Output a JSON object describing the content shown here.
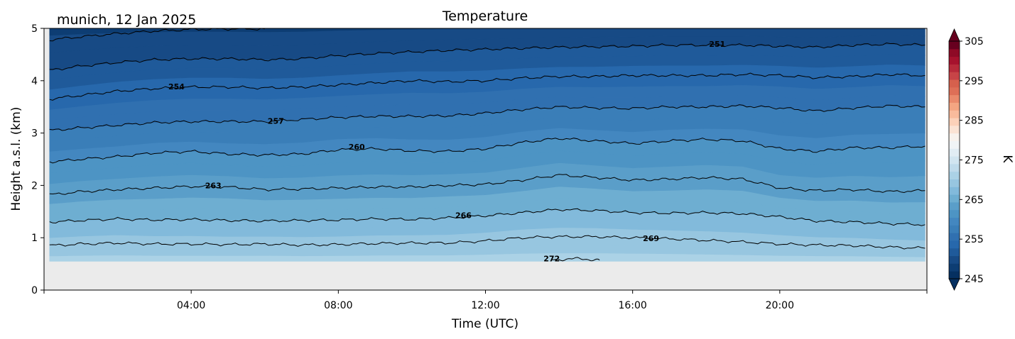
{
  "chart_data": {
    "type": "heatmap",
    "title": "Temperature",
    "location_label": "munich, 12 Jan 2025",
    "xlabel": "Time (UTC)",
    "ylabel": "Height a.s.l. (km)",
    "x_unit": "hours UTC",
    "xlim": [
      0,
      24
    ],
    "ylim": [
      0,
      5
    ],
    "x_ticks": [
      {
        "value": 4,
        "label": "04:00"
      },
      {
        "value": 8,
        "label": "08:00"
      },
      {
        "value": 12,
        "label": "12:00"
      },
      {
        "value": 16,
        "label": "16:00"
      },
      {
        "value": 20,
        "label": "20:00"
      }
    ],
    "y_ticks": [
      {
        "value": 0,
        "label": "0"
      },
      {
        "value": 1,
        "label": "1"
      },
      {
        "value": 2,
        "label": "2"
      },
      {
        "value": 3,
        "label": "3"
      },
      {
        "value": 4,
        "label": "4"
      },
      {
        "value": 5,
        "label": "5"
      }
    ],
    "data_time_range": [
      0.15,
      23.95
    ],
    "data_bottom_km": 0.55,
    "colorbar": {
      "label": "K",
      "range": [
        245,
        305
      ],
      "ticks": [
        {
          "value": 245,
          "label": "245"
        },
        {
          "value": 255,
          "label": "255"
        },
        {
          "value": 265,
          "label": "265"
        },
        {
          "value": 275,
          "label": "275"
        },
        {
          "value": 285,
          "label": "285"
        },
        {
          "value": 295,
          "label": "295"
        },
        {
          "value": 305,
          "label": "305"
        }
      ],
      "colors": [
        "#053061",
        "#0d3d73",
        "#174a85",
        "#1f5a9a",
        "#2768ac",
        "#3070b0",
        "#3a7eb8",
        "#4387c0",
        "#4d94c4",
        "#5a9ec9",
        "#6eaed1",
        "#82badb",
        "#97c6e0",
        "#abd2e6",
        "#bfdbeb",
        "#d1e5f0",
        "#e1edf4",
        "#f0f4f6",
        "#f8f2ed",
        "#fbe3d4",
        "#fcd1b9",
        "#f9bb9c",
        "#f4a582",
        "#ea8a6c",
        "#de6f57",
        "#d6604d",
        "#c74447",
        "#b72a3a",
        "#a6122d",
        "#8e0a26",
        "#67001f"
      ],
      "extend": "both",
      "under_color": "#053061",
      "over_color": "#67001f"
    },
    "surface_fill_color": "#ebebeb",
    "contours": [
      {
        "level": 269,
        "points": [
          [
            0.15,
            0.85
          ],
          [
            1,
            0.88
          ],
          [
            2,
            0.9
          ],
          [
            3,
            0.88
          ],
          [
            4,
            0.88
          ],
          [
            5,
            0.87
          ],
          [
            6,
            0.88
          ],
          [
            7,
            0.86
          ],
          [
            8,
            0.87
          ],
          [
            9,
            0.89
          ],
          [
            10,
            0.9
          ],
          [
            11,
            0.9
          ],
          [
            12,
            0.94
          ],
          [
            13,
            1.0
          ],
          [
            14,
            1.02
          ],
          [
            15,
            1.02
          ],
          [
            16,
            1.0
          ],
          [
            17,
            0.98
          ],
          [
            18,
            0.95
          ],
          [
            19,
            0.92
          ],
          [
            20,
            0.88
          ],
          [
            21,
            0.86
          ],
          [
            22,
            0.85
          ],
          [
            23,
            0.82
          ],
          [
            23.95,
            0.8
          ]
        ],
        "label": {
          "x": 16.5,
          "y": 0.99,
          "text": "269"
        }
      },
      {
        "level": 266,
        "points": [
          [
            0.15,
            1.3
          ],
          [
            1,
            1.33
          ],
          [
            2,
            1.36
          ],
          [
            3,
            1.34
          ],
          [
            4,
            1.35
          ],
          [
            5,
            1.33
          ],
          [
            6,
            1.32
          ],
          [
            7,
            1.33
          ],
          [
            8,
            1.34
          ],
          [
            9,
            1.36
          ],
          [
            10,
            1.35
          ],
          [
            11,
            1.38
          ],
          [
            12,
            1.42
          ],
          [
            13,
            1.48
          ],
          [
            14,
            1.54
          ],
          [
            15,
            1.52
          ],
          [
            16,
            1.48
          ],
          [
            17,
            1.47
          ],
          [
            18,
            1.48
          ],
          [
            19,
            1.46
          ],
          [
            20,
            1.4
          ],
          [
            21,
            1.32
          ],
          [
            22,
            1.3
          ],
          [
            23,
            1.27
          ],
          [
            23.95,
            1.25
          ]
        ],
        "label": {
          "x": 11.4,
          "y": 1.43,
          "text": "266"
        }
      },
      {
        "level": 263,
        "points": [
          [
            0.15,
            1.82
          ],
          [
            1,
            1.88
          ],
          [
            2,
            1.92
          ],
          [
            3,
            1.95
          ],
          [
            4,
            1.98
          ],
          [
            5,
            1.97
          ],
          [
            6,
            1.92
          ],
          [
            7,
            1.93
          ],
          [
            8,
            1.95
          ],
          [
            9,
            1.97
          ],
          [
            10,
            1.97
          ],
          [
            11,
            2.0
          ],
          [
            12,
            2.02
          ],
          [
            13,
            2.1
          ],
          [
            14,
            2.2
          ],
          [
            15,
            2.15
          ],
          [
            16,
            2.1
          ],
          [
            17,
            2.12
          ],
          [
            18,
            2.15
          ],
          [
            19,
            2.12
          ],
          [
            20,
            1.95
          ],
          [
            21,
            1.9
          ],
          [
            22,
            1.92
          ],
          [
            23,
            1.88
          ],
          [
            23.95,
            1.9
          ]
        ],
        "label": {
          "x": 4.6,
          "y": 2.0,
          "text": "263"
        }
      },
      {
        "level": 260,
        "points": [
          [
            0.15,
            2.45
          ],
          [
            1,
            2.5
          ],
          [
            2,
            2.55
          ],
          [
            3,
            2.62
          ],
          [
            4,
            2.65
          ],
          [
            5,
            2.6
          ],
          [
            6,
            2.58
          ],
          [
            7,
            2.6
          ],
          [
            8,
            2.68
          ],
          [
            9,
            2.7
          ],
          [
            10,
            2.66
          ],
          [
            11,
            2.65
          ],
          [
            12,
            2.7
          ],
          [
            13,
            2.82
          ],
          [
            14,
            2.9
          ],
          [
            15,
            2.85
          ],
          [
            16,
            2.8
          ],
          [
            17,
            2.85
          ],
          [
            18,
            2.88
          ],
          [
            19,
            2.85
          ],
          [
            20,
            2.7
          ],
          [
            21,
            2.65
          ],
          [
            22,
            2.72
          ],
          [
            23,
            2.72
          ],
          [
            23.95,
            2.75
          ]
        ],
        "label": {
          "x": 8.5,
          "y": 2.74,
          "text": "260"
        }
      },
      {
        "level": 257,
        "points": [
          [
            0.15,
            3.05
          ],
          [
            1,
            3.1
          ],
          [
            2,
            3.15
          ],
          [
            3,
            3.2
          ],
          [
            4,
            3.22
          ],
          [
            5,
            3.22
          ],
          [
            6,
            3.22
          ],
          [
            7,
            3.26
          ],
          [
            8,
            3.3
          ],
          [
            9,
            3.32
          ],
          [
            10,
            3.32
          ],
          [
            11,
            3.33
          ],
          [
            12,
            3.38
          ],
          [
            13,
            3.45
          ],
          [
            14,
            3.5
          ],
          [
            15,
            3.48
          ],
          [
            16,
            3.47
          ],
          [
            17,
            3.5
          ],
          [
            18,
            3.5
          ],
          [
            19,
            3.52
          ],
          [
            20,
            3.48
          ],
          [
            21,
            3.42
          ],
          [
            22,
            3.48
          ],
          [
            23,
            3.52
          ],
          [
            23.95,
            3.5
          ]
        ],
        "label": {
          "x": 6.3,
          "y": 3.23,
          "text": "257"
        }
      },
      {
        "level": 254,
        "points": [
          [
            0.15,
            3.65
          ],
          [
            1,
            3.72
          ],
          [
            2,
            3.8
          ],
          [
            3,
            3.85
          ],
          [
            4,
            3.88
          ],
          [
            5,
            3.88
          ],
          [
            6,
            3.86
          ],
          [
            7,
            3.88
          ],
          [
            8,
            3.92
          ],
          [
            9,
            3.96
          ],
          [
            10,
            4.0
          ],
          [
            11,
            3.98
          ],
          [
            12,
            4.0
          ],
          [
            13,
            4.05
          ],
          [
            14,
            4.08
          ],
          [
            15,
            4.08
          ],
          [
            16,
            4.1
          ],
          [
            17,
            4.1
          ],
          [
            18,
            4.1
          ],
          [
            19,
            4.12
          ],
          [
            20,
            4.1
          ],
          [
            21,
            4.06
          ],
          [
            22,
            4.08
          ],
          [
            23,
            4.12
          ],
          [
            23.95,
            4.1
          ]
        ],
        "label": {
          "x": 3.6,
          "y": 3.89,
          "text": "254"
        }
      },
      {
        "level": 251,
        "points": [
          [
            0.15,
            4.2
          ],
          [
            1,
            4.28
          ],
          [
            2,
            4.35
          ],
          [
            3,
            4.4
          ],
          [
            4,
            4.42
          ],
          [
            5,
            4.42
          ],
          [
            6,
            4.4
          ],
          [
            7,
            4.42
          ],
          [
            8,
            4.48
          ],
          [
            9,
            4.52
          ],
          [
            10,
            4.55
          ],
          [
            11,
            4.58
          ],
          [
            12,
            4.6
          ],
          [
            13,
            4.62
          ],
          [
            14,
            4.64
          ],
          [
            15,
            4.65
          ],
          [
            16,
            4.66
          ],
          [
            17,
            4.68
          ],
          [
            18,
            4.68
          ],
          [
            19,
            4.68
          ],
          [
            20,
            4.66
          ],
          [
            21,
            4.64
          ],
          [
            22,
            4.68
          ],
          [
            23,
            4.7
          ],
          [
            23.95,
            4.68
          ]
        ],
        "label": {
          "x": 18.3,
          "y": 4.7,
          "text": "251"
        }
      },
      {
        "level": 248,
        "points": [
          [
            0.15,
            4.78
          ],
          [
            1,
            4.84
          ],
          [
            2,
            4.9
          ],
          [
            3,
            4.95
          ],
          [
            4,
            4.98
          ],
          [
            5,
            4.99
          ],
          [
            6,
            4.99
          ]
        ],
        "label": null
      },
      {
        "level": 272,
        "points": [
          [
            13.8,
            0.57
          ],
          [
            14.3,
            0.6
          ],
          [
            14.8,
            0.59
          ],
          [
            15.1,
            0.57
          ]
        ],
        "label": {
          "x": 13.8,
          "y": 0.6,
          "text": "272"
        }
      }
    ]
  }
}
